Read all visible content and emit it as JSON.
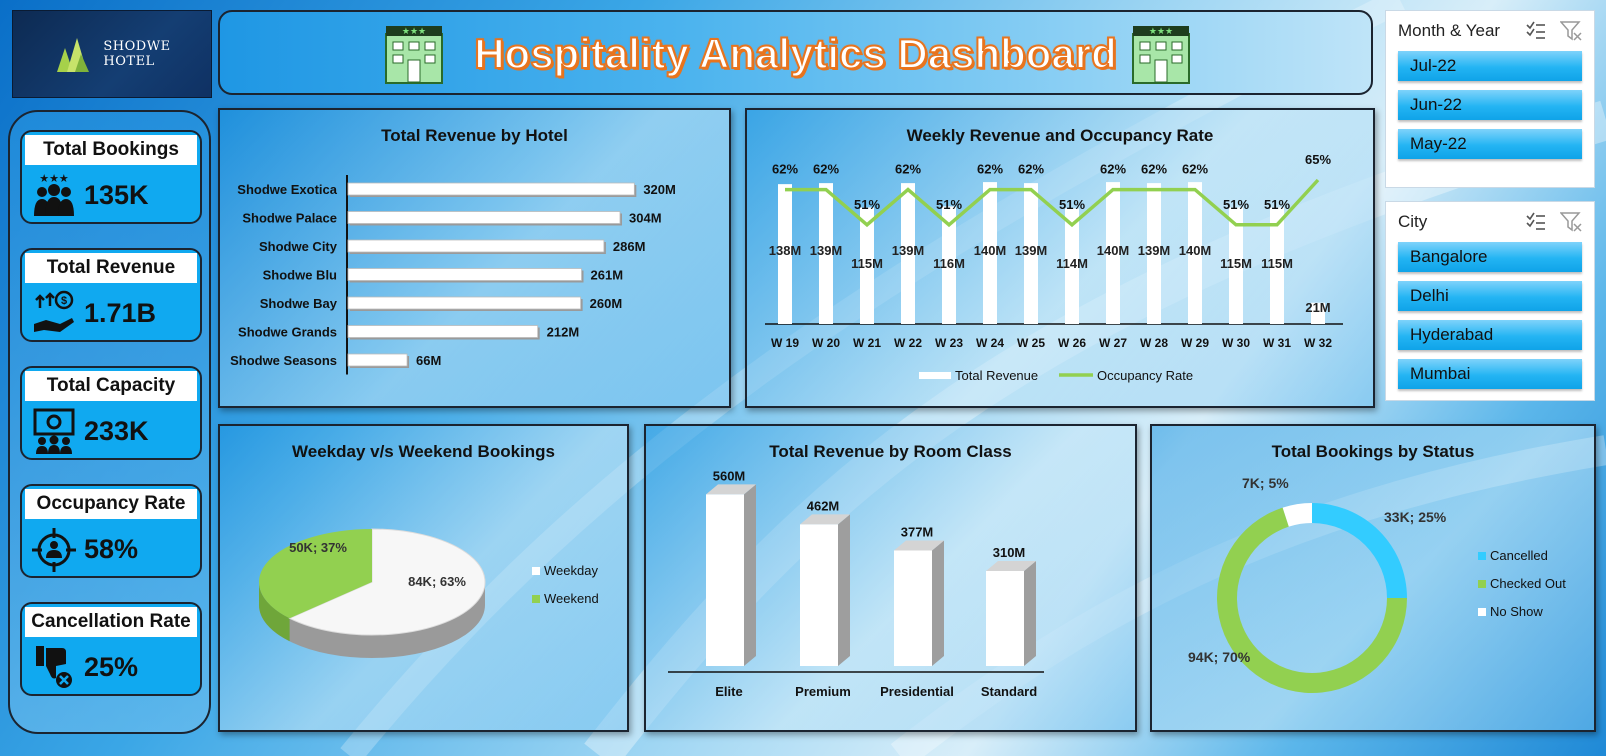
{
  "header": {
    "title": "Hospitality Analytics Dashboard"
  },
  "logo": {
    "line1": "SHODWE",
    "line2": "HOTEL"
  },
  "kpis": [
    {
      "label": "Total Bookings",
      "value": "135K",
      "icon": "people-stars-icon"
    },
    {
      "label": "Total Revenue",
      "value": "1.71B",
      "icon": "money-hand-icon"
    },
    {
      "label": "Total Capacity",
      "value": "233K",
      "icon": "capacity-people-icon"
    },
    {
      "label": "Occupancy Rate",
      "value": "58%",
      "icon": "target-person-icon"
    },
    {
      "label": "Cancellation Rate",
      "value": "25%",
      "icon": "thumbs-down-cancel-icon"
    }
  ],
  "slicers": {
    "month": {
      "title": "Month & Year",
      "items": [
        "Jul-22",
        "Jun-22",
        "May-22"
      ]
    },
    "city": {
      "title": "City",
      "items": [
        "Bangalore",
        "Delhi",
        "Hyderabad",
        "Mumbai"
      ]
    }
  },
  "colors": {
    "accent": "#10a9f0",
    "green": "#92d050",
    "orange": "#e8741e",
    "cyan": "#33ccff"
  },
  "chart_data": [
    {
      "type": "bar",
      "orientation": "horizontal",
      "title": "Total Revenue by Hotel",
      "categories": [
        "Shodwe Exotica",
        "Shodwe Palace",
        "Shodwe City",
        "Shodwe Blu",
        "Shodwe Bay",
        "Shodwe Grands",
        "Shodwe Seasons"
      ],
      "values": [
        320,
        304,
        286,
        261,
        260,
        212,
        66
      ],
      "labels": [
        "320M",
        "304M",
        "286M",
        "261M",
        "260M",
        "212M",
        "66M"
      ],
      "xlim": [
        0,
        380
      ]
    },
    {
      "type": "bar+line",
      "title": "Weekly Revenue and Occupancy Rate",
      "categories": [
        "W 19",
        "W 20",
        "W 21",
        "W 22",
        "W 23",
        "W 24",
        "W 25",
        "W 26",
        "W 27",
        "W 28",
        "W 29",
        "W 30",
        "W 31",
        "W 32"
      ],
      "series": [
        {
          "name": "Total Revenue",
          "values": [
            138,
            139,
            115,
            139,
            116,
            140,
            139,
            114,
            140,
            139,
            140,
            115,
            115,
            21
          ],
          "labels": [
            "138M",
            "139M",
            "115M",
            "139M",
            "116M",
            "140M",
            "139M",
            "114M",
            "140M",
            "139M",
            "140M",
            "115M",
            "115M",
            "21M"
          ]
        },
        {
          "name": "Occupancy Rate",
          "values": [
            62,
            62,
            51,
            62,
            51,
            62,
            62,
            51,
            62,
            62,
            62,
            51,
            51,
            65
          ],
          "labels": [
            "62%",
            "62%",
            "51%",
            "62%",
            "51%",
            "62%",
            "62%",
            "51%",
            "62%",
            "62%",
            "62%",
            "51%",
            "51%",
            "65%"
          ]
        }
      ],
      "legend": "bottom"
    },
    {
      "type": "pie",
      "title": "Weekday v/s Weekend Bookings",
      "slices": [
        {
          "name": "Weekday",
          "value": 63,
          "label": "84K; 63%"
        },
        {
          "name": "Weekend",
          "value": 37,
          "label": "50K; 37%"
        }
      ],
      "legend": "right"
    },
    {
      "type": "bar",
      "title": "Total Revenue by Room Class",
      "categories": [
        "Elite",
        "Premium",
        "Presidential",
        "Standard"
      ],
      "values": [
        560,
        462,
        377,
        310
      ],
      "labels": [
        "560M",
        "462M",
        "377M",
        "310M"
      ],
      "ylim": [
        0,
        620
      ]
    },
    {
      "type": "pie",
      "subtype": "donut",
      "title": "Total Bookings by Status",
      "slices": [
        {
          "name": "Cancelled",
          "value": 25,
          "label": "33K; 25%"
        },
        {
          "name": "Checked Out",
          "value": 70,
          "label": "94K; 70%"
        },
        {
          "name": "No Show",
          "value": 5,
          "label": "7K; 5%"
        }
      ],
      "legend": "right"
    }
  ]
}
